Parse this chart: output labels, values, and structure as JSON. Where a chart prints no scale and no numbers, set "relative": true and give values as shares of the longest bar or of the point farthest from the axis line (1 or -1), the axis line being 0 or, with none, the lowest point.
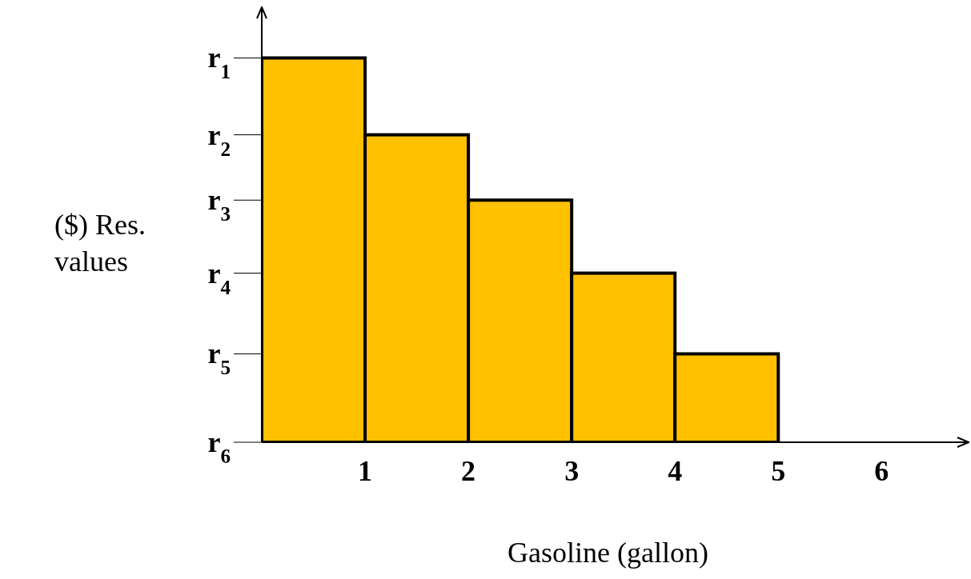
{
  "chart_data": {
    "type": "bar",
    "relative": true,
    "x": [
      0.5,
      1.5,
      2.5,
      3.5,
      4.5
    ],
    "values": [
      1,
      0.8,
      0.63,
      0.44,
      0.23
    ],
    "color": "#ffc000",
    "xlim": [
      0,
      6.85
    ],
    "xticks": [
      1,
      2,
      3,
      4,
      5,
      6
    ],
    "annotations": [
      "r$_{1}$",
      "r$_{2}$",
      "r$_{3}$",
      "r$_{4}$",
      "r$_{5}$",
      "r$_{6}$"
    ],
    "xlabel": "Gasoline (gallon)",
    "ylabel": "($) Res. values",
    "grid": false,
    "legend": false
  }
}
